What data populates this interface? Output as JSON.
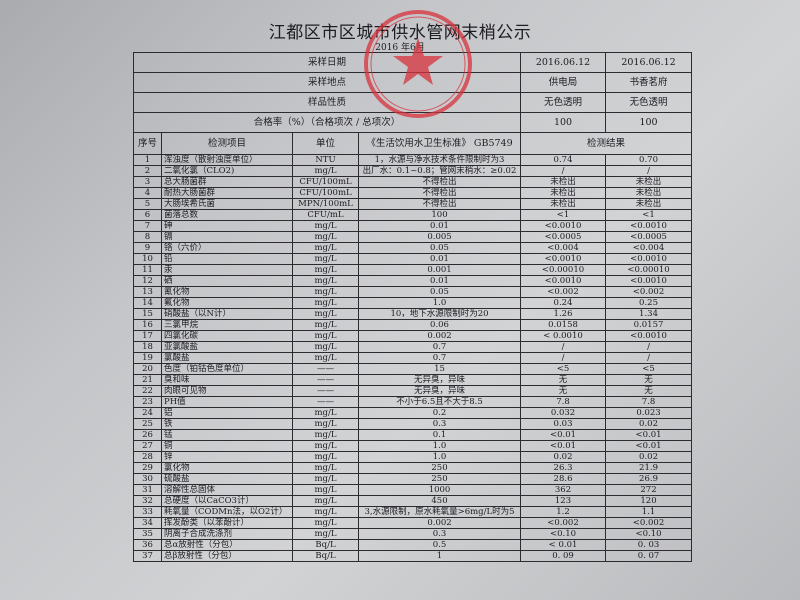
{
  "document": {
    "title": "江都区市区城市供水管网末梢公示",
    "subtitle": "2016 年6月",
    "stamp_color": "#d8323c"
  },
  "header_rows": [
    {
      "label": "采样日期",
      "values": [
        "2016.06.12",
        "2016.06.12"
      ]
    },
    {
      "label": "采样地点",
      "values": [
        "供电局",
        "书香茗府"
      ]
    },
    {
      "label": "样品性质",
      "values": [
        "无色透明",
        "无色透明"
      ]
    },
    {
      "label": "合格率（%）（合格项次 / 总项次）",
      "values": [
        "100",
        "100"
      ]
    }
  ],
  "columns": {
    "no": "序号",
    "item": "检测项目",
    "unit": "单位",
    "standard": "《生活饮用水卫生标准》 GB5749",
    "result": "检测结果"
  },
  "rows": [
    [
      "1",
      "浑浊度（散射浊度单位）",
      "NTU",
      "1，水源与净水技术条件限制时为3",
      "0.74",
      "0.70"
    ],
    [
      "2",
      "二氧化氯（CLO2)",
      "mg/L",
      "出厂水：0.1~0.8；管网末梢水：≥0.02",
      "/",
      "/"
    ],
    [
      "3",
      "总大肠菌群",
      "CFU/100mL",
      "不得检出",
      "未检出",
      "未检出"
    ],
    [
      "4",
      "耐热大肠菌群",
      "CFU/100mL",
      "不得检出",
      "未检出",
      "未检出"
    ],
    [
      "5",
      "大肠埃希氏菌",
      "MPN/100mL",
      "不得检出",
      "未检出",
      "未检出"
    ],
    [
      "6",
      "菌落总数",
      "CFU/mL",
      "100",
      "<1",
      "<1"
    ],
    [
      "7",
      "砷",
      "mg/L",
      "0.01",
      "<0.0010",
      "<0.0010"
    ],
    [
      "8",
      "镉",
      "mg/L",
      "0.005",
      "<0.0005",
      "<0.0005"
    ],
    [
      "9",
      "铬（六价）",
      "mg/L",
      "0.05",
      "<0.004",
      "<0.004"
    ],
    [
      "10",
      "铅",
      "mg/L",
      "0.01",
      "<0.0010",
      "<0.0010"
    ],
    [
      "11",
      "汞",
      "mg/L",
      "0.001",
      "<0.00010",
      "<0.00010"
    ],
    [
      "12",
      "硒",
      "mg/L",
      "0.01",
      "<0.0010",
      "<0.0010"
    ],
    [
      "13",
      "氰化物",
      "mg/L",
      "0.05",
      "<0.002",
      "<0.002"
    ],
    [
      "14",
      "氟化物",
      "mg/L",
      "1.0",
      "0.24",
      "0.25"
    ],
    [
      "15",
      "硝酸盐（以N计）",
      "mg/L",
      "10，地下水源限制时为20",
      "1.26",
      "1.34"
    ],
    [
      "16",
      "三氯甲烷",
      "mg/L",
      "0.06",
      "0.0158",
      "0.0157"
    ],
    [
      "17",
      "四氯化碳",
      "mg/L",
      "0.002",
      "< 0.0010",
      "<0.0010"
    ],
    [
      "18",
      "亚氯酸盐",
      "mg/L",
      "0.7",
      "/",
      "/"
    ],
    [
      "19",
      "氯酸盐",
      "mg/L",
      "0.7",
      "/",
      "/"
    ],
    [
      "20",
      "色度（铂钴色度单位）",
      "——",
      "15",
      "<5",
      "<5"
    ],
    [
      "21",
      "臭和味",
      "——",
      "无异臭，异味",
      "无",
      "无"
    ],
    [
      "22",
      "肉眼可见物",
      "——",
      "无异臭，异味",
      "无",
      "无"
    ],
    [
      "23",
      "PH值",
      "——",
      "不小于6.5且不大于8.5",
      "7.8",
      "7.8"
    ],
    [
      "24",
      "铝",
      "mg/L",
      "0.2",
      "0.032",
      "0.023"
    ],
    [
      "25",
      "铁",
      "mg/L",
      "0.3",
      "0.03",
      "0.02"
    ],
    [
      "26",
      "锰",
      "mg/L",
      "0.1",
      "<0.01",
      "<0.01"
    ],
    [
      "27",
      "铜",
      "mg/L",
      "1.0",
      "<0.01",
      "<0.01"
    ],
    [
      "28",
      "锌",
      "mg/L",
      "1.0",
      "0.02",
      "0.02"
    ],
    [
      "29",
      "氯化物",
      "mg/L",
      "250",
      "26.3",
      "21.9"
    ],
    [
      "30",
      "硫酸盐",
      "mg/L",
      "250",
      "28.6",
      "26.9"
    ],
    [
      "31",
      "溶解性总固体",
      "mg/L",
      "1000",
      "362",
      "272"
    ],
    [
      "32",
      "总硬度（以CaCO3计）",
      "mg/L",
      "450",
      "123",
      "120"
    ],
    [
      "33",
      "耗氧量（CODMn法，以O2计）",
      "mg/L",
      "3,水源限制，原水耗氧量>6mg/L时为5",
      "1.2",
      "1.1"
    ],
    [
      "34",
      "挥发酚类（以苯酚计）",
      "mg/L",
      "0.002",
      "<0.002",
      "<0.002"
    ],
    [
      "35",
      "阴离子合成洗涤剂",
      "mg/L",
      "0.3",
      "<0.10",
      "<0.10"
    ],
    [
      "36",
      "总α放射性（分包）",
      "Bq/L",
      "0.5",
      "< 0.01",
      "0. 03"
    ],
    [
      "37",
      "总β放射性（分包）",
      "Bq/L",
      "1",
      "0. 09",
      "0. 07"
    ]
  ]
}
